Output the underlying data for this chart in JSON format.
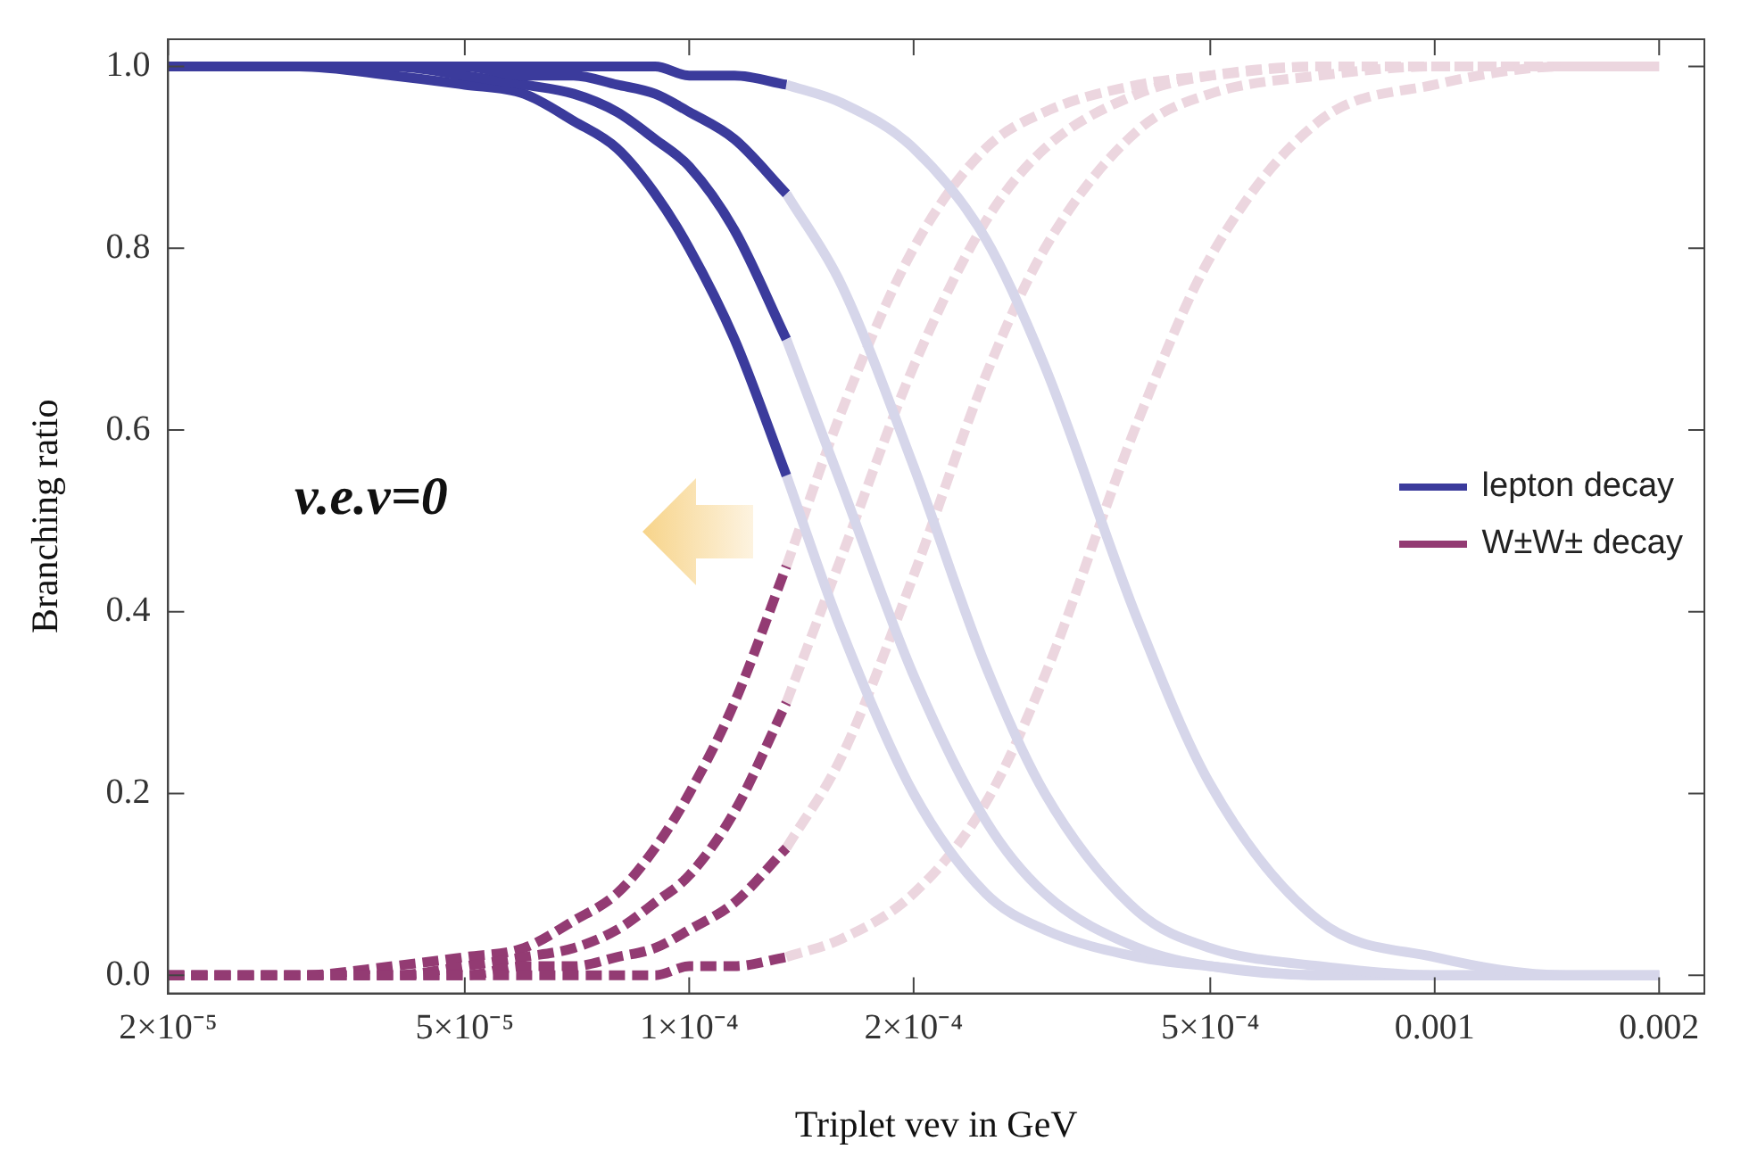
{
  "chart_data": {
    "type": "line",
    "xlabel": "Triplet vev in GeV",
    "ylabel": "Branching ratio",
    "log": "x",
    "grid": false,
    "legend": "right",
    "marker": "none",
    "xlim": [
      2e-05,
      0.0023
    ],
    "ylim": [
      -0.02,
      1.03
    ],
    "xticks": [
      {
        "value": 2e-05,
        "label": "2×10⁻⁵"
      },
      {
        "value": 5e-05,
        "label": "5×10⁻⁵"
      },
      {
        "value": 0.0001,
        "label": "1×10⁻⁴"
      },
      {
        "value": 0.0002,
        "label": "2×10⁻⁴"
      },
      {
        "value": 0.0005,
        "label": "5×10⁻⁴"
      },
      0.001,
      0.002
    ],
    "yticks": [
      {
        "value": 0,
        "label": "0.0"
      },
      {
        "value": 0.2,
        "label": "0.2"
      },
      {
        "value": 0.4,
        "label": "0.4"
      },
      {
        "value": 0.6,
        "label": "0.6"
      },
      {
        "value": 0.8,
        "label": "0.8"
      },
      {
        "value": 1,
        "label": "1.0"
      }
    ],
    "annotations": [
      "v.e.v=0"
    ],
    "series": [
      {
        "name": "lepton decay",
        "color": "#3b3b9c",
        "line_style": "solid",
        "x": [
          2e-05,
          3e-05,
          4e-05,
          5e-05,
          6e-05,
          7e-05,
          8e-05,
          9e-05,
          0.0001,
          0.000115,
          0.000135
        ],
        "values": [
          1,
          1,
          1,
          1,
          1,
          1,
          1,
          1,
          0.99,
          0.99,
          0.98
        ]
      },
      {
        "color": "#3b3b9c",
        "line_style": "solid",
        "x": [
          2e-05,
          3e-05,
          4e-05,
          5e-05,
          6e-05,
          7e-05,
          8e-05,
          9e-05,
          0.0001,
          0.000115,
          0.000135
        ],
        "values": [
          1,
          1,
          1,
          1,
          0.99,
          0.99,
          0.98,
          0.97,
          0.95,
          0.92,
          0.86
        ]
      },
      {
        "color": "#3b3b9c",
        "line_style": "solid",
        "x": [
          2e-05,
          3e-05,
          4e-05,
          5e-05,
          6e-05,
          7e-05,
          8e-05,
          9e-05,
          0.0001,
          0.000115,
          0.000135
        ],
        "values": [
          1,
          1,
          1,
          0.99,
          0.98,
          0.97,
          0.95,
          0.92,
          0.89,
          0.82,
          0.7
        ]
      },
      {
        "color": "#3b3b9c",
        "line_style": "solid",
        "x": [
          2e-05,
          3e-05,
          4e-05,
          5e-05,
          6e-05,
          7e-05,
          8e-05,
          9e-05,
          0.0001,
          0.000115,
          0.000135
        ],
        "values": [
          1,
          1,
          0.99,
          0.98,
          0.97,
          0.94,
          0.91,
          0.86,
          0.8,
          0.7,
          0.55
        ]
      },
      {
        "name": "W±W± decay",
        "color": "#933b73",
        "line_style": "dashed",
        "x": [
          2e-05,
          3e-05,
          4e-05,
          5e-05,
          6e-05,
          7e-05,
          8e-05,
          9e-05,
          0.0001,
          0.000115,
          0.000135
        ],
        "values": [
          0,
          0,
          0,
          0,
          0,
          0,
          0,
          0,
          0.01,
          0.01,
          0.02
        ]
      },
      {
        "color": "#933b73",
        "line_style": "dashed",
        "x": [
          2e-05,
          3e-05,
          4e-05,
          5e-05,
          6e-05,
          7e-05,
          8e-05,
          9e-05,
          0.0001,
          0.000115,
          0.000135
        ],
        "values": [
          0,
          0,
          0,
          0,
          0.01,
          0.01,
          0.02,
          0.03,
          0.05,
          0.08,
          0.14
        ]
      },
      {
        "color": "#933b73",
        "line_style": "dashed",
        "x": [
          2e-05,
          3e-05,
          4e-05,
          5e-05,
          6e-05,
          7e-05,
          8e-05,
          9e-05,
          0.0001,
          0.000115,
          0.000135
        ],
        "values": [
          0,
          0,
          0,
          0.01,
          0.02,
          0.03,
          0.05,
          0.08,
          0.11,
          0.18,
          0.3
        ]
      },
      {
        "color": "#933b73",
        "line_style": "dashed",
        "x": [
          2e-05,
          3e-05,
          4e-05,
          5e-05,
          6e-05,
          7e-05,
          8e-05,
          9e-05,
          0.0001,
          0.000115,
          0.000135
        ],
        "values": [
          0,
          0,
          0.01,
          0.02,
          0.03,
          0.06,
          0.09,
          0.14,
          0.2,
          0.3,
          0.45
        ]
      },
      {
        "color": "#d6d6ea",
        "line_style": "solid",
        "x": [
          0.000135,
          0.00016,
          0.0002,
          0.00025,
          0.0003,
          0.0004,
          0.0005,
          0.0007,
          0.001,
          0.0015,
          0.002
        ],
        "values": [
          0.98,
          0.96,
          0.91,
          0.81,
          0.67,
          0.39,
          0.21,
          0.06,
          0.02,
          0,
          0
        ]
      },
      {
        "color": "#d6d6ea",
        "line_style": "solid",
        "x": [
          0.000135,
          0.00016,
          0.0002,
          0.00025,
          0.0003,
          0.0004,
          0.0005,
          0.0007,
          0.001,
          0.0015,
          0.002
        ],
        "values": [
          0.86,
          0.76,
          0.56,
          0.34,
          0.2,
          0.07,
          0.03,
          0.01,
          0,
          0,
          0
        ]
      },
      {
        "color": "#d6d6ea",
        "line_style": "solid",
        "x": [
          0.000135,
          0.00016,
          0.0002,
          0.00025,
          0.0003,
          0.0004,
          0.0005,
          0.0007,
          0.001,
          0.0015,
          0.002
        ],
        "values": [
          0.7,
          0.54,
          0.33,
          0.17,
          0.09,
          0.03,
          0.01,
          0,
          0,
          0,
          0
        ]
      },
      {
        "color": "#d6d6ea",
        "line_style": "solid",
        "x": [
          0.000135,
          0.00016,
          0.0002,
          0.00025,
          0.0003,
          0.0004,
          0.0005,
          0.0007,
          0.001,
          0.0015,
          0.002
        ],
        "values": [
          0.55,
          0.38,
          0.2,
          0.09,
          0.05,
          0.02,
          0.01,
          0,
          0,
          0,
          0
        ]
      },
      {
        "color": "#ecd6df",
        "line_style": "dashed",
        "x": [
          0.000135,
          0.00016,
          0.0002,
          0.00025,
          0.0003,
          0.0004,
          0.0005,
          0.0007,
          0.001,
          0.0015,
          0.002
        ],
        "values": [
          0.02,
          0.04,
          0.09,
          0.19,
          0.33,
          0.61,
          0.79,
          0.94,
          0.98,
          1,
          1
        ]
      },
      {
        "color": "#ecd6df",
        "line_style": "dashed",
        "x": [
          0.000135,
          0.00016,
          0.0002,
          0.00025,
          0.0003,
          0.0004,
          0.0005,
          0.0007,
          0.001,
          0.0015,
          0.002
        ],
        "values": [
          0.14,
          0.24,
          0.44,
          0.66,
          0.8,
          0.93,
          0.97,
          0.99,
          1,
          1,
          1
        ]
      },
      {
        "color": "#ecd6df",
        "line_style": "dashed",
        "x": [
          0.000135,
          0.00016,
          0.0002,
          0.00025,
          0.0003,
          0.0004,
          0.0005,
          0.0007,
          0.001,
          0.0015,
          0.002
        ],
        "values": [
          0.3,
          0.46,
          0.67,
          0.83,
          0.91,
          0.97,
          0.99,
          1,
          1,
          1,
          1
        ]
      },
      {
        "color": "#ecd6df",
        "line_style": "dashed",
        "x": [
          0.000135,
          0.00016,
          0.0002,
          0.00025,
          0.0003,
          0.0004,
          0.0005,
          0.0007,
          0.001,
          0.0015,
          0.002
        ],
        "values": [
          0.45,
          0.62,
          0.8,
          0.91,
          0.95,
          0.98,
          0.99,
          1,
          1,
          1,
          1
        ]
      }
    ]
  }
}
